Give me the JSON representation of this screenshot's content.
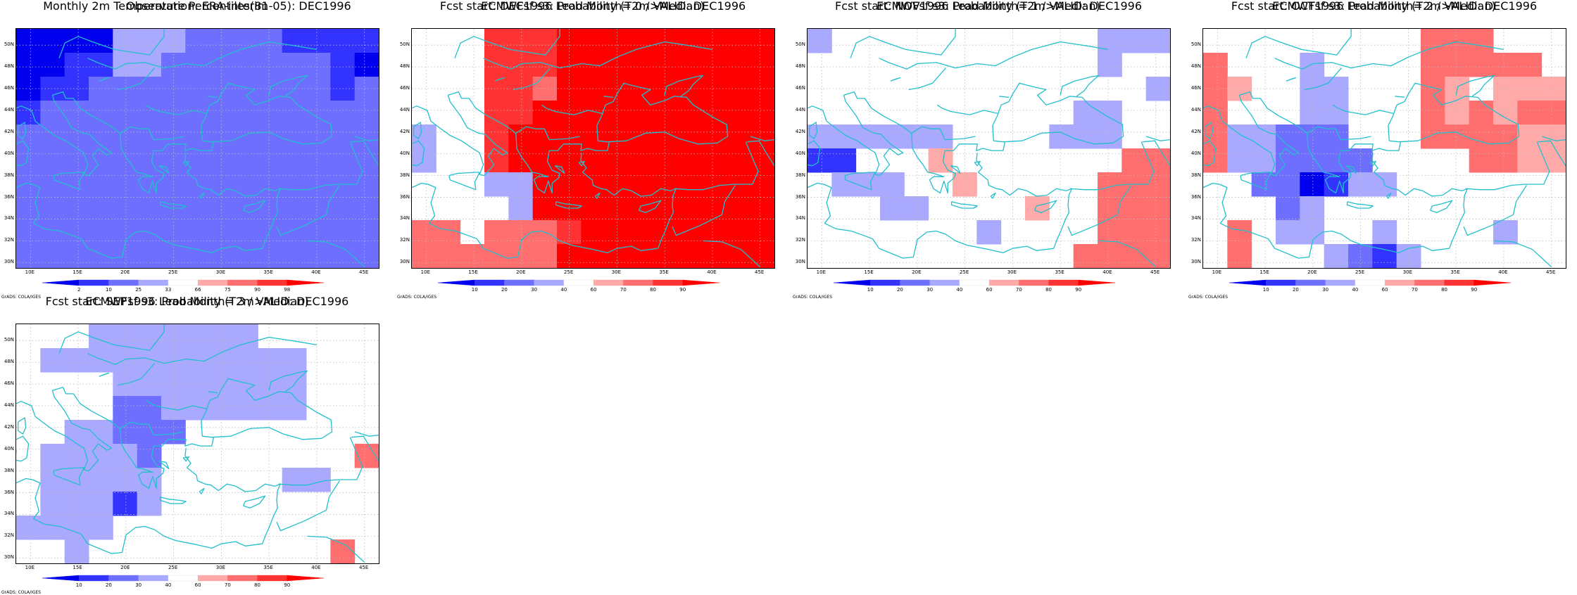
{
  "colors": {
    "coast": "#22bfcc",
    "grid": "#bbbbbb",
    "scale_observation": [
      "#0000ee",
      "#3333ff",
      "#6f6fff",
      "#a9a9ff",
      "#ffffff",
      "#ffa9a9",
      "#ff6f6f",
      "#ff3333",
      "#ff0000"
    ],
    "scale_probability": [
      "#0000ee",
      "#3333ff",
      "#6f6fff",
      "#a9a9ff",
      "#ffffff",
      "#ffa9a9",
      "#ff6f6f",
      "#ff3333",
      "#ff0000"
    ]
  },
  "panels": [
    {
      "id": "obs",
      "title_line1": "Observation: ERA-interim",
      "title_line2": "Monthly 2m Temperature Percentiles(81-05): DEC1996",
      "colorbar_labels": [
        "2",
        "10",
        "25",
        "33",
        "66",
        "75",
        "90",
        "98"
      ],
      "credit": "GrADS: COLA/IGES",
      "grid_levels": [
        "000033322221111",
        "001133222222210",
        "011222222222212",
        "122222222222222",
        "222222222222222",
        "222222222222222",
        "222222222222222",
        "222222222222222",
        "222222222222222",
        "222222222222222"
      ]
    },
    {
      "id": "lead0",
      "title_line1": "ECMWFsf s3: Probability (T2m>Median)",
      "title_line2": "Fcst start: DEC1996  Lead Month= 0 / VALID: DEC1996",
      "colorbar_labels": [
        "10",
        "20",
        "30",
        "40",
        "60",
        "70",
        "80",
        "90"
      ],
      "credit": "GrADS: COLA/IGES",
      "grid_levels": []
    },
    {
      "id": "lead1",
      "title_line1": "ECMWFsf s3: Probability (T2m>Median)",
      "title_line2": "Fcst start: NOV1996  Lead Month= 1 / VALID: DEC1996",
      "colorbar_labels": [
        "10",
        "20",
        "30",
        "40",
        "60",
        "70",
        "80",
        "90"
      ],
      "credit": "GrADS: COLA/IGES",
      "grid_levels": []
    },
    {
      "id": "lead2",
      "title_line1": "ECMWFsf s3: Probability (T2m>Median)",
      "title_line2": "Fcst start: OCT1996  Lead Month= 2 / VALID: DEC1996",
      "colorbar_labels": [
        "10",
        "20",
        "30",
        "40",
        "60",
        "70",
        "80",
        "90"
      ],
      "credit": "GrADS: COLA/IGES",
      "grid_levels": []
    },
    {
      "id": "lead3",
      "title_line1": "ECMWFsf s3: Probability (T2m>Median)",
      "title_line2": "Fcst start: SEP1996  Lead Month= 3 / VALID: DEC1996",
      "colorbar_labels": [
        "10",
        "20",
        "30",
        "40",
        "60",
        "70",
        "80",
        "90"
      ],
      "credit": "GrADS: COLA/IGES",
      "grid_levels": []
    }
  ],
  "axes": {
    "lat_labels": [
      "50N",
      "48N",
      "46N",
      "44N",
      "42N",
      "40N",
      "38N",
      "36N",
      "34N",
      "32N",
      "30N"
    ],
    "lon_labels": [
      "10E",
      "15E",
      "20E",
      "25E",
      "30E",
      "35E",
      "40E",
      "45E"
    ]
  }
}
